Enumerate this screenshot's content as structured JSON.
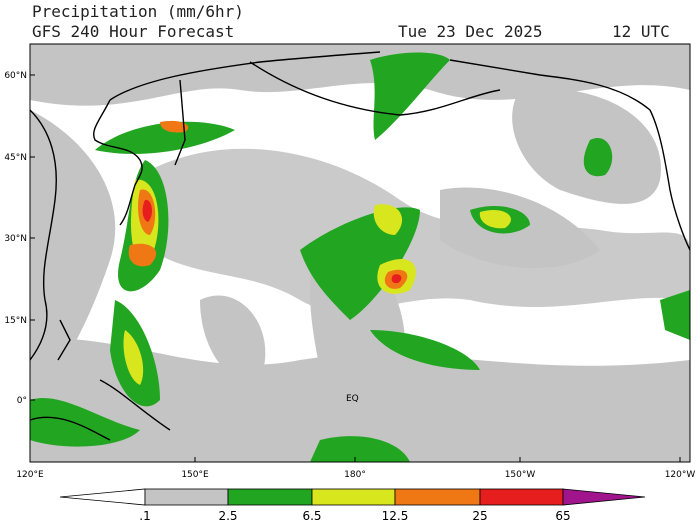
{
  "header": {
    "title": "Precipitation (mm/6hr)",
    "subtitle": "GFS 240 Hour Forecast",
    "date": "Tue 23 Dec 2025",
    "time": "12 UTC"
  },
  "map": {
    "lat_labels": [
      "60°N",
      "45°N",
      "30°N",
      "15°N",
      "0°"
    ],
    "lon_labels": [
      "120°E",
      "150°E",
      "180°",
      "150°W",
      "120°W"
    ],
    "equator_label": "EQ"
  },
  "legend": {
    "labels": [
      ".1",
      "2.5",
      "6.5",
      "12.5",
      "25",
      "65"
    ]
  }
}
